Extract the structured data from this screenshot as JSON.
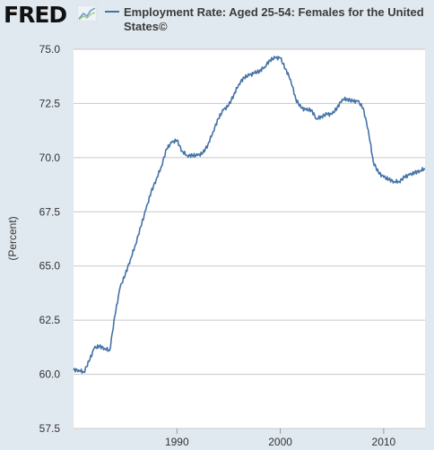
{
  "header": {
    "logo_text": "FRED",
    "logo_icon": "line-chart-icon"
  },
  "chart_data": {
    "type": "line",
    "title": "Employment Rate: Aged 25-54: Females for the United States©",
    "ylabel": "(Percent)",
    "xlabel": "",
    "ylim": [
      57.5,
      75.0
    ],
    "xlim": [
      1980.0,
      2014.0
    ],
    "yticks": [
      "57.5",
      "60.0",
      "62.5",
      "65.0",
      "67.5",
      "70.0",
      "72.5",
      "75.0"
    ],
    "xticks": [
      "1990",
      "2000",
      "2010"
    ],
    "grid": true,
    "legend": "top",
    "series": [
      {
        "name": "Employment Rate: Aged 25-54: Females for the United States©",
        "color": "#4572a7",
        "x": [
          1980.0,
          1980.5,
          1981.0,
          1981.5,
          1982.0,
          1982.5,
          1983.0,
          1983.5,
          1984.0,
          1984.5,
          1985.0,
          1985.5,
          1986.0,
          1986.5,
          1987.0,
          1987.5,
          1988.0,
          1988.5,
          1989.0,
          1989.5,
          1990.0,
          1990.5,
          1991.0,
          1991.5,
          1992.0,
          1992.5,
          1993.0,
          1993.5,
          1994.0,
          1994.5,
          1995.0,
          1995.5,
          1996.0,
          1996.5,
          1997.0,
          1997.5,
          1998.0,
          1998.5,
          1999.0,
          1999.5,
          2000.0,
          2000.5,
          2001.0,
          2001.5,
          2002.0,
          2002.5,
          2003.0,
          2003.5,
          2004.0,
          2004.5,
          2005.0,
          2005.5,
          2006.0,
          2006.5,
          2007.0,
          2007.5,
          2008.0,
          2008.5,
          2009.0,
          2009.5,
          2010.0,
          2010.5,
          2011.0,
          2011.5,
          2012.0,
          2012.5,
          2013.0,
          2013.5,
          2014.0
        ],
        "values": [
          60.2,
          60.2,
          60.1,
          60.6,
          61.2,
          61.3,
          61.2,
          61.1,
          62.7,
          64.0,
          64.6,
          65.3,
          66.0,
          66.8,
          67.6,
          68.4,
          69.0,
          69.6,
          70.4,
          70.7,
          70.8,
          70.3,
          70.1,
          70.1,
          70.1,
          70.2,
          70.6,
          71.2,
          71.8,
          72.2,
          72.4,
          72.9,
          73.4,
          73.7,
          73.8,
          73.9,
          74.0,
          74.2,
          74.5,
          74.6,
          74.6,
          74.1,
          73.6,
          72.7,
          72.3,
          72.2,
          72.2,
          71.8,
          71.9,
          72.0,
          72.0,
          72.3,
          72.7,
          72.7,
          72.6,
          72.6,
          72.3,
          71.3,
          69.8,
          69.3,
          69.1,
          69.0,
          68.9,
          68.9,
          69.1,
          69.2,
          69.3,
          69.4,
          69.5
        ]
      }
    ]
  }
}
